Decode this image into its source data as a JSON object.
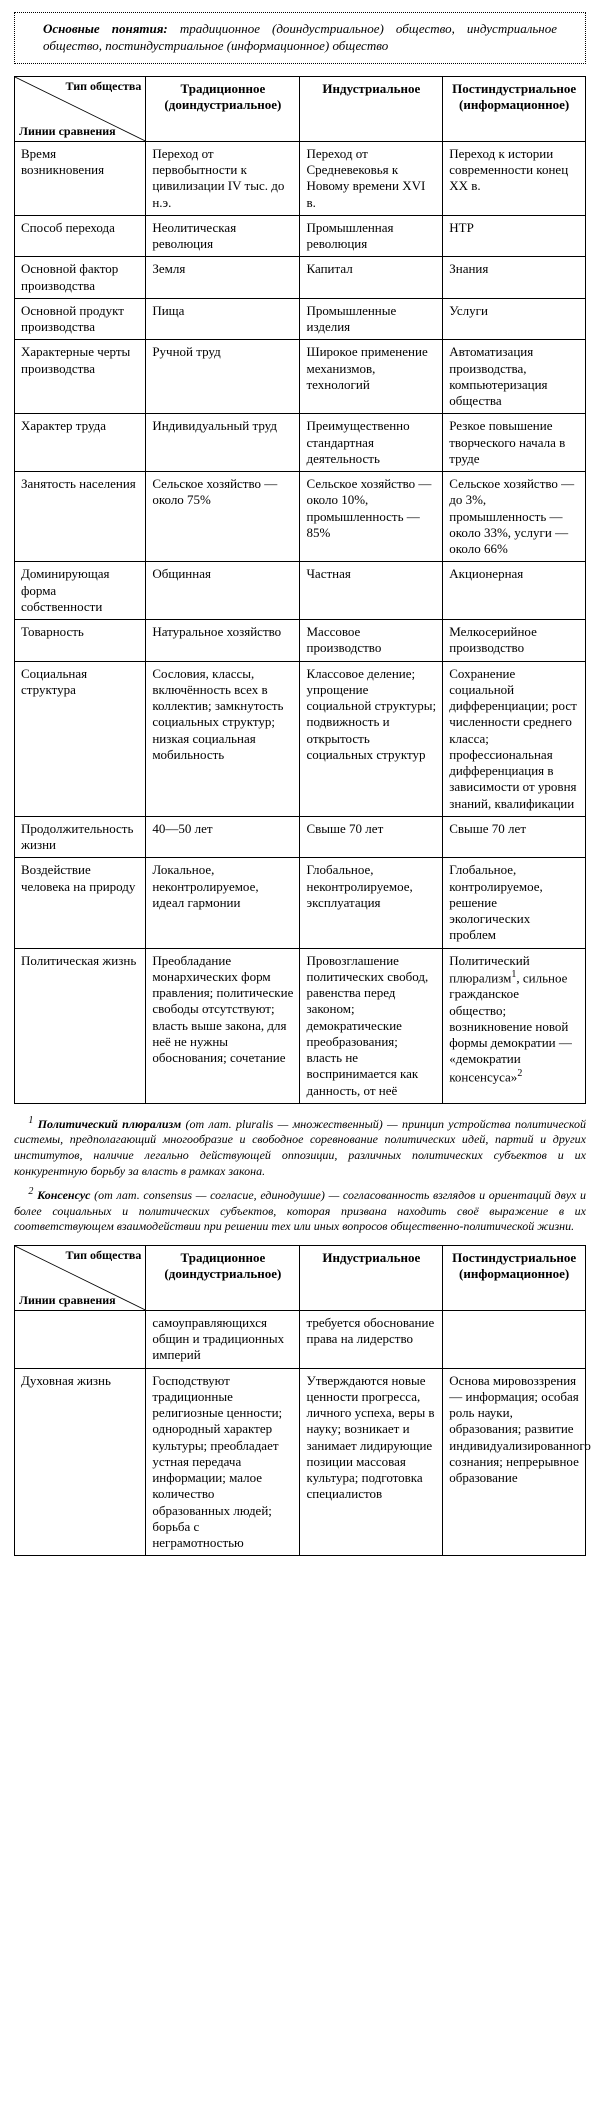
{
  "concepts": {
    "label": "Основные понятия:",
    "text": "традиционное (доиндустриальное) общество, индустриальное общество, постиндустриальное (информационное) общество"
  },
  "header": {
    "diag_top": "Тип общества",
    "diag_bottom": "Линии сравнения",
    "col2": "Традиционное (доиндустриальное)",
    "col3": "Индустриальное",
    "col4": "Постиндустриальное (информационное)"
  },
  "rows": [
    {
      "c1": "Время возникновения",
      "c2": "Переход от первобытности к цивилизации IV тыс. до н.э.",
      "c3": "Переход от Средневековья к Новому времени XVI в.",
      "c4": "Переход к истории современности конец XX в."
    },
    {
      "c1": "Способ перехода",
      "c2": "Неолитическая революция",
      "c3": "Промышленная революция",
      "c4": "НТР"
    },
    {
      "c1": "Основной фактор производства",
      "c2": "Земля",
      "c3": "Капитал",
      "c4": "Знания"
    },
    {
      "c1": "Основной продукт производства",
      "c2": "Пища",
      "c3": "Промышленные изделия",
      "c4": "Услуги"
    },
    {
      "c1": "Характерные черты производства",
      "c2": "Ручной труд",
      "c3": "Широкое применение механизмов, технологий",
      "c4": "Автоматизация производства, компьютеризация общества"
    },
    {
      "c1": "Характер труда",
      "c2": "Индивидуальный труд",
      "c3": "Преимущественно стандартная деятельность",
      "c4": "Резкое повышение творческого начала в труде"
    },
    {
      "c1": "Занятость населения",
      "c2": "Сельское хозяйство — около 75%",
      "c3": "Сельское хозяйство — около 10%, промышленность — 85%",
      "c4": "Сельское хозяйство — до 3%, промышленность — около 33%, услуги — около 66%"
    },
    {
      "c1": "Доминирующая форма собственности",
      "c2": "Общинная",
      "c3": "Частная",
      "c4": "Акционерная"
    },
    {
      "c1": "Товарность",
      "c2": "Натуральное хозяйство",
      "c3": "Массовое производство",
      "c4": "Мелкосерийное производство"
    },
    {
      "c1": "Социальная структура",
      "c2": "Сословия, классы, включённость всех в коллектив; замкнутость социальных структур; низкая социальная мобильность",
      "c3": "Классовое деление; упрощение социальной структуры; подвижность и открытость социальных структур",
      "c4": "Сохранение социальной дифференциации; рост численности среднего класса; профессиональная дифференциация в зависимости от уровня знаний, квалификации"
    },
    {
      "c1": "Продолжительность жизни",
      "c2": "40—50 лет",
      "c3": "Свыше 70 лет",
      "c4": "Свыше 70 лет"
    },
    {
      "c1": "Воздействие человека на природу",
      "c2": "Локальное, неконтролируемое, идеал гармонии",
      "c3": "Глобальное, неконтролируемое, эксплуатация",
      "c4": "Глобальное, контролируемое, решение экологических проблем"
    },
    {
      "c1": "Политическая жизнь",
      "c2": "Преобладание монархических форм правления; политические свободы отсутствуют; власть выше закона, для неё не нужны обоснования; сочетание",
      "c3": "Провозглашение политических свобод, равенства перед законом; демократические преобразования; власть не воспринимается как данность, от неё",
      "c4_html": "Политический плюрализм<sup>1</sup>, сильное гражданское общество; возникновение новой формы демократии — «демократии консенсуса»<sup>2</sup>"
    }
  ],
  "footnotes": {
    "f1_sup": "1",
    "f1_term": "Политический плюрализм",
    "f1_text": "(от лат. pluralis — множественный) — принцип устройства политической системы, предполагающий многообразие и свободное соревнование политических идей, партий и других институтов, наличие легально действующей оппозиции, различных политических субъектов и их конкурентную борьбу за власть в рамках закона.",
    "f2_sup": "2",
    "f2_term": "Консенсус",
    "f2_text": "(от лат. consensus — согласие, единодушие) — согласованность взглядов и ориентаций двух и более социальных и политических субъектов, которая призвана находить своё выражение в их соответствующем взаимодействии при решении тех или иных вопросов общественно-политической жизни."
  },
  "rows2": [
    {
      "c1": "",
      "c2": "самоуправляющихся общин и традиционных империй",
      "c3": "требуется обоснование права на лидерство",
      "c4": ""
    },
    {
      "c1": "Духовная жизнь",
      "c2": "Господствуют традиционные религиозные ценности; однородный характер культуры; преобладает устная передача информации; малое количество образованных людей; борьба с неграмотностью",
      "c3": "Утверждаются новые ценности прогресса, личного успеха, веры в науку; возникает и занимает лидирующие позиции массовая культура; подготовка специалистов",
      "c4": "Основа мировоззрения — информация; особая роль науки, образования; развитие индивидуализированного сознания; непрерывное образование"
    }
  ]
}
